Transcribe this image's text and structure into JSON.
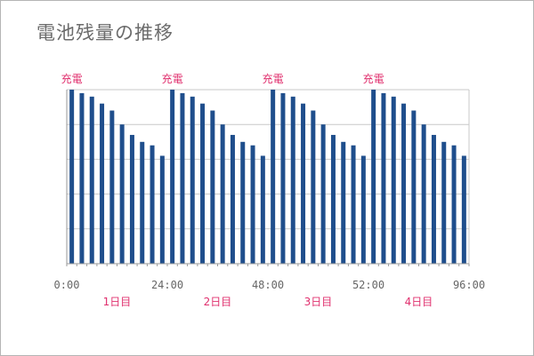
{
  "chart_data": {
    "type": "bar",
    "title": "電池残量の推移",
    "xlabel": "",
    "ylabel": "",
    "ylim": [
      0,
      100
    ],
    "grid": true,
    "colors": {
      "bar": "#1f4e8c",
      "grid": "#c9c9c9",
      "axis": "#9a9a9a",
      "annotation": "#e0306e",
      "title": "#6b6b6b",
      "tick": "#666666"
    },
    "values": [
      100,
      98,
      96,
      92,
      88,
      80,
      74,
      70,
      68,
      62,
      100,
      98,
      96,
      92,
      88,
      80,
      74,
      70,
      68,
      62,
      100,
      98,
      96,
      92,
      88,
      80,
      74,
      70,
      68,
      62,
      100,
      98,
      96,
      92,
      88,
      80,
      74,
      70,
      68,
      62
    ],
    "xticks": [
      "0:00",
      "24:00",
      "48:00",
      "52:00",
      "96:00"
    ],
    "charge_labels": [
      "充電",
      "充電",
      "充電",
      "充電"
    ],
    "day_labels": [
      "1日目",
      "2日目",
      "3日目",
      "4日目"
    ]
  }
}
